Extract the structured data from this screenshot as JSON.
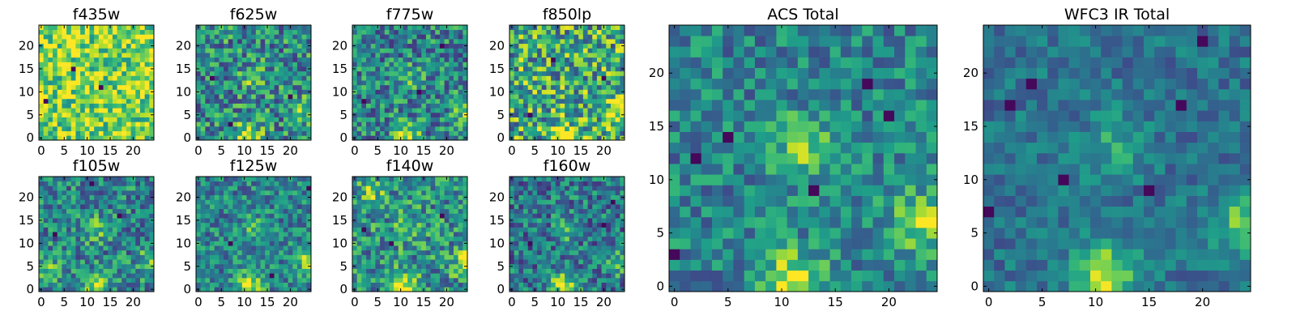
{
  "colormap": {
    "name": "viridis",
    "stops": [
      "#440154",
      "#482878",
      "#3e4989",
      "#31688e",
      "#26828e",
      "#1f9e89",
      "#35b779",
      "#6ece58",
      "#b5de2b",
      "#fde725"
    ]
  },
  "chart_data": [
    {
      "type": "heatmap",
      "title": "f435w",
      "grid_size": 25,
      "x_ticks": [
        "0",
        "5",
        "10",
        "15",
        "20"
      ],
      "y_ticks": [
        "0",
        "5",
        "10",
        "15",
        "20"
      ],
      "xlim": [
        -0.5,
        24.5
      ],
      "ylim": [
        -0.5,
        24.5
      ],
      "value_range": [
        0,
        1
      ],
      "features": {
        "mean": 0.8,
        "noise": 0.3,
        "seed": 11,
        "blobs": [],
        "holes": [
          [
            7,
            15
          ],
          [
            1,
            8
          ],
          [
            13,
            11
          ]
        ]
      }
    },
    {
      "type": "heatmap",
      "title": "f625w",
      "grid_size": 25,
      "x_ticks": [
        "0",
        "5",
        "10",
        "15",
        "20"
      ],
      "y_ticks": [
        "0",
        "5",
        "10",
        "15",
        "20"
      ],
      "xlim": [
        -0.5,
        24.5
      ],
      "ylim": [
        -0.5,
        24.5
      ],
      "value_range": [
        0,
        1
      ],
      "features": {
        "mean": 0.48,
        "noise": 0.32,
        "seed": 23,
        "blobs": [
          [
            11,
            0.5,
            0.5
          ],
          [
            12,
            13,
            0.25
          ],
          [
            23,
            6,
            0.3
          ]
        ],
        "holes": [
          [
            3,
            13
          ],
          [
            20,
            9
          ],
          [
            7,
            3
          ]
        ]
      }
    },
    {
      "type": "heatmap",
      "title": "f775w",
      "grid_size": 25,
      "x_ticks": [
        "0",
        "5",
        "10",
        "15",
        "20"
      ],
      "y_ticks": [
        "0",
        "5",
        "10",
        "15",
        "20"
      ],
      "xlim": [
        -0.5,
        24.5
      ],
      "ylim": [
        -0.5,
        24.5
      ],
      "value_range": [
        0,
        1
      ],
      "features": {
        "mean": 0.45,
        "noise": 0.3,
        "seed": 37,
        "blobs": [
          [
            11,
            0.5,
            0.5
          ],
          [
            12,
            13,
            0.2
          ],
          [
            24,
            6,
            0.35
          ]
        ],
        "holes": [
          [
            19,
            20
          ],
          [
            2,
            8
          ],
          [
            14,
            10
          ]
        ]
      }
    },
    {
      "type": "heatmap",
      "title": "f850lp",
      "grid_size": 25,
      "x_ticks": [
        "0",
        "5",
        "10",
        "15",
        "20"
      ],
      "y_ticks": [
        "0",
        "5",
        "10",
        "15",
        "20"
      ],
      "xlim": [
        -0.5,
        24.5
      ],
      "ylim": [
        -0.5,
        24.5
      ],
      "value_range": [
        0,
        1
      ],
      "features": {
        "mean": 0.6,
        "noise": 0.38,
        "seed": 41,
        "blobs": [
          [
            11,
            0.5,
            0.4
          ],
          [
            23,
            6,
            0.35
          ]
        ],
        "holes": [
          [
            9,
            17
          ],
          [
            20,
            13
          ],
          [
            4,
            5
          ]
        ]
      }
    },
    {
      "type": "heatmap",
      "title": "f105w",
      "grid_size": 25,
      "x_ticks": [
        "0",
        "5",
        "10",
        "15",
        "20"
      ],
      "y_ticks": [
        "0",
        "5",
        "10",
        "15",
        "20"
      ],
      "xlim": [
        -0.5,
        24.5
      ],
      "ylim": [
        -0.5,
        24.5
      ],
      "value_range": [
        0,
        1
      ],
      "features": {
        "mean": 0.45,
        "noise": 0.28,
        "seed": 53,
        "blobs": [
          [
            12,
            1,
            0.5
          ],
          [
            12,
            13,
            0.25
          ],
          [
            24,
            6,
            0.35
          ],
          [
            2,
            4,
            0.25
          ]
        ],
        "holes": [
          [
            11,
            23
          ],
          [
            17,
            16
          ],
          [
            3,
            12
          ]
        ]
      }
    },
    {
      "type": "heatmap",
      "title": "f125w",
      "grid_size": 25,
      "x_ticks": [
        "0",
        "5",
        "10",
        "15",
        "20"
      ],
      "y_ticks": [
        "0",
        "5",
        "10",
        "15",
        "20"
      ],
      "xlim": [
        -0.5,
        24.5
      ],
      "ylim": [
        -0.5,
        24.5
      ],
      "value_range": [
        0,
        1
      ],
      "features": {
        "mean": 0.45,
        "noise": 0.25,
        "seed": 61,
        "blobs": [
          [
            11,
            1,
            0.45
          ],
          [
            12,
            13,
            0.2
          ],
          [
            24,
            6,
            0.35
          ]
        ],
        "holes": [
          [
            24,
            22
          ],
          [
            7,
            10
          ],
          [
            16,
            3
          ]
        ]
      }
    },
    {
      "type": "heatmap",
      "title": "f140w",
      "grid_size": 25,
      "x_ticks": [
        "0",
        "5",
        "10",
        "15",
        "20"
      ],
      "y_ticks": [
        "0",
        "5",
        "10",
        "15",
        "20"
      ],
      "xlim": [
        -0.5,
        24.5
      ],
      "ylim": [
        -0.5,
        24.5
      ],
      "value_range": [
        0,
        1
      ],
      "features": {
        "mean": 0.5,
        "noise": 0.3,
        "seed": 73,
        "blobs": [
          [
            11,
            1,
            0.45
          ],
          [
            12,
            13,
            0.25
          ],
          [
            24,
            6,
            0.35
          ],
          [
            4,
            21,
            0.25
          ]
        ],
        "holes": [
          [
            8,
            10
          ],
          [
            19,
            16
          ],
          [
            2,
            13
          ]
        ]
      }
    },
    {
      "type": "heatmap",
      "title": "f160w",
      "grid_size": 25,
      "x_ticks": [
        "0",
        "5",
        "10",
        "15",
        "20"
      ],
      "y_ticks": [
        "0",
        "5",
        "10",
        "15",
        "20"
      ],
      "xlim": [
        -0.5,
        24.5
      ],
      "ylim": [
        -0.5,
        24.5
      ],
      "value_range": [
        0,
        1
      ],
      "features": {
        "mean": 0.4,
        "noise": 0.28,
        "seed": 89,
        "blobs": [
          [
            11,
            1,
            0.5
          ],
          [
            12,
            13,
            0.2
          ],
          [
            24,
            6,
            0.35
          ]
        ],
        "holes": [
          [
            20,
            14
          ],
          [
            4,
            10
          ],
          [
            22,
            19
          ]
        ]
      }
    },
    {
      "type": "heatmap",
      "title": "ACS Total",
      "grid_size": 25,
      "x_ticks": [
        "0",
        "5",
        "10",
        "15",
        "20"
      ],
      "y_ticks": [
        "0",
        "5",
        "10",
        "15",
        "20"
      ],
      "xlim": [
        -0.5,
        24.5
      ],
      "ylim": [
        -0.5,
        24.5
      ],
      "value_range": [
        0,
        1
      ],
      "features": {
        "mean": 0.45,
        "noise": 0.22,
        "seed": 97,
        "blobs": [
          [
            11,
            0.5,
            0.5
          ],
          [
            12,
            13,
            0.35
          ],
          [
            23,
            6,
            0.4
          ]
        ],
        "holes": [
          [
            20,
            16
          ],
          [
            18,
            19
          ],
          [
            2,
            12
          ],
          [
            5,
            14
          ],
          [
            13,
            9
          ],
          [
            0,
            3
          ]
        ]
      }
    },
    {
      "type": "heatmap",
      "title": "WFC3 IR Total",
      "grid_size": 25,
      "x_ticks": [
        "0",
        "5",
        "10",
        "15",
        "20"
      ],
      "y_ticks": [
        "0",
        "5",
        "10",
        "15",
        "20"
      ],
      "xlim": [
        -0.5,
        24.5
      ],
      "ylim": [
        -0.5,
        24.5
      ],
      "value_range": [
        0,
        1
      ],
      "features": {
        "mean": 0.38,
        "noise": 0.15,
        "seed": 101,
        "blobs": [
          [
            11,
            1,
            0.55
          ],
          [
            12,
            13,
            0.25
          ],
          [
            24,
            6,
            0.4
          ]
        ],
        "holes": [
          [
            4,
            19
          ],
          [
            2,
            17
          ],
          [
            20,
            23
          ],
          [
            18,
            17
          ],
          [
            7,
            10
          ],
          [
            15,
            9
          ],
          [
            0,
            7
          ]
        ]
      }
    }
  ]
}
